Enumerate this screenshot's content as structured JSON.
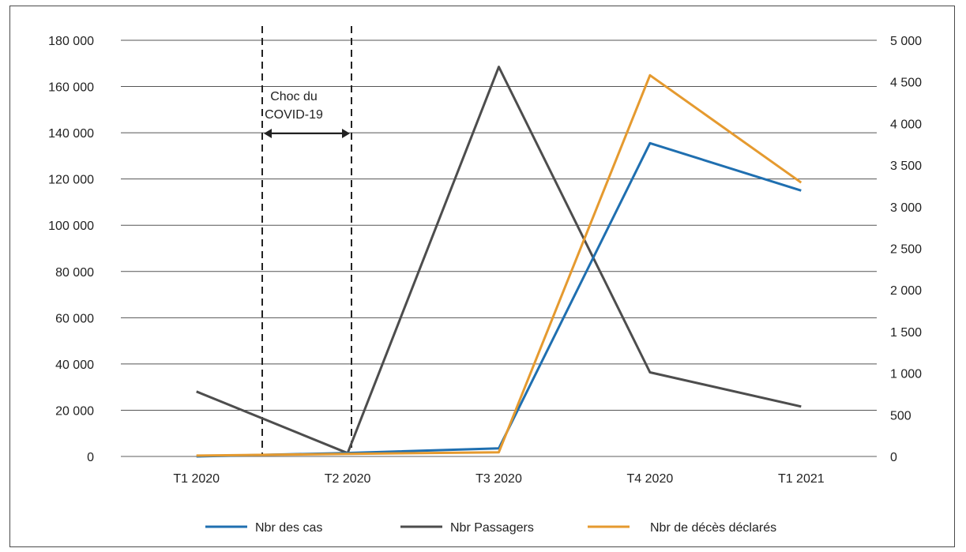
{
  "chart_data": {
    "type": "line",
    "categories": [
      "T1 2020",
      "T2 2020",
      "T3 2020",
      "T4 2020",
      "T1 2021"
    ],
    "left_axis": {
      "ticks": [
        "0",
        "20 000",
        "40 000",
        "60 000",
        "80 000",
        "100 000",
        "120 000",
        "140 000",
        "160 000",
        "180 000"
      ],
      "ylim": [
        0,
        180000
      ]
    },
    "right_axis": {
      "ticks": [
        "0",
        "500",
        "1 000",
        "1 500",
        "2 000",
        "2 500",
        "3 000",
        "3 500",
        "4 000",
        "4 500",
        "5 000"
      ],
      "ylim": [
        0,
        5000
      ]
    },
    "series": [
      {
        "name": "Nbr des cas",
        "axis": "left",
        "color": "#1f6fb0",
        "values": [
          0,
          1500,
          3500,
          135500,
          115000
        ]
      },
      {
        "name": "Nbr Passagers",
        "axis": "right",
        "color": "#4d4d4d",
        "values": [
          780,
          40,
          4680,
          1010,
          600
        ]
      },
      {
        "name": "Nbr de décès déclarés",
        "axis": "right",
        "color": "#e59a2f",
        "values": [
          10,
          30,
          50,
          4580,
          3290
        ]
      }
    ],
    "annotation": {
      "text_line1": "Choc du",
      "text_line2": "COVID-19",
      "range": [
        "T1 2020",
        "T2 2020"
      ]
    },
    "grid": true,
    "legend": "bottom"
  }
}
